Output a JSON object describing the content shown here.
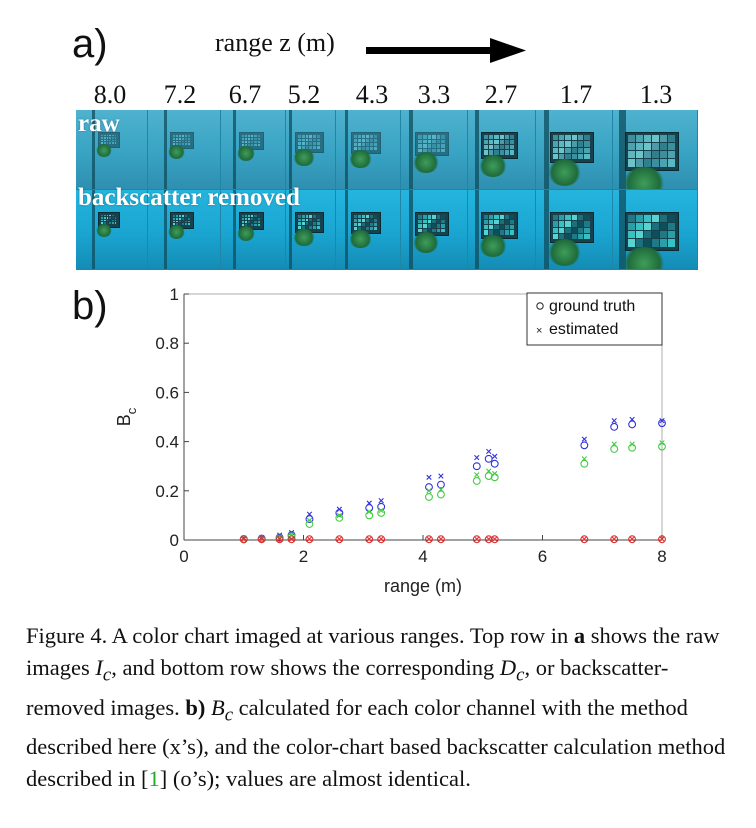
{
  "figure": {
    "panel_a_label": "a)",
    "panel_b_label": "b)",
    "range_title": "range z (m)",
    "ranges": [
      "8.0",
      "7.2",
      "6.7",
      "5.2",
      "4.3",
      "3.3",
      "2.7",
      "1.7",
      "1.3"
    ],
    "row_labels": {
      "top": "raw",
      "bottom": "backscatter removed"
    }
  },
  "chart_data": {
    "type": "scatter",
    "title": "",
    "xlabel": "range (m)",
    "ylabel": "B_c",
    "ylabel_main": "B",
    "ylabel_sub": "c",
    "xlim": [
      0,
      8
    ],
    "ylim": [
      0,
      1
    ],
    "xticks": [
      "0",
      "2",
      "4",
      "6",
      "8"
    ],
    "yticks": [
      "0",
      "0.2",
      "0.4",
      "0.6",
      "0.8",
      "1"
    ],
    "legend": {
      "position": "top-right",
      "entries": [
        {
          "marker": "o",
          "label": "ground truth"
        },
        {
          "marker": "x",
          "label": "estimated"
        }
      ]
    },
    "x": [
      1.0,
      1.3,
      1.6,
      1.8,
      2.1,
      2.6,
      3.1,
      3.3,
      4.1,
      4.3,
      4.9,
      5.1,
      5.2,
      6.7,
      7.2,
      7.5,
      8.0
    ],
    "series": [
      {
        "color": "#3333dd",
        "ground_truth": [
          0.004,
          0.006,
          0.01,
          0.02,
          0.085,
          0.11,
          0.13,
          0.135,
          0.215,
          0.225,
          0.3,
          0.33,
          0.31,
          0.385,
          0.46,
          0.47,
          0.475
        ],
        "estimated": [
          0.008,
          0.01,
          0.02,
          0.03,
          0.105,
          0.125,
          0.15,
          0.16,
          0.255,
          0.26,
          0.335,
          0.36,
          0.34,
          0.41,
          0.485,
          0.49,
          0.485
        ]
      },
      {
        "color": "#44cc44",
        "ground_truth": [
          0.002,
          0.004,
          0.006,
          0.015,
          0.065,
          0.09,
          0.1,
          0.11,
          0.175,
          0.185,
          0.24,
          0.26,
          0.255,
          0.31,
          0.37,
          0.375,
          0.38
        ],
        "estimated": [
          0.004,
          0.006,
          0.01,
          0.02,
          0.08,
          0.1,
          0.115,
          0.12,
          0.2,
          0.205,
          0.265,
          0.28,
          0.27,
          0.33,
          0.39,
          0.39,
          0.395
        ]
      },
      {
        "color": "#dd3333",
        "ground_truth": [
          0.003,
          0.003,
          0.003,
          0.003,
          0.003,
          0.003,
          0.003,
          0.003,
          0.003,
          0.003,
          0.003,
          0.003,
          0.003,
          0.003,
          0.003,
          0.003,
          0.003
        ],
        "estimated": [
          0.004,
          0.004,
          0.004,
          0.004,
          0.004,
          0.004,
          0.004,
          0.004,
          0.004,
          0.004,
          0.004,
          0.004,
          0.004,
          0.004,
          0.004,
          0.004,
          0.004
        ]
      }
    ]
  },
  "caption": {
    "part1": "Figure 4. A color chart imaged at various ranges. Top row in ",
    "bold_a": "a",
    "part2": " shows the raw images ",
    "math_I": "I",
    "sub_c1": "c",
    "part3": ", and bottom row shows the corresponding ",
    "math_D": "D",
    "sub_c2": "c",
    "part4": ", or backscatter-removed images. ",
    "bold_b": "b)",
    "part5": " ",
    "math_B": "B",
    "sub_c3": "c",
    "part6": " calculated for each color channel with the method described here (x’s), and the color-chart based backscatter calculation method described in [",
    "cite": "1",
    "part7": "] (o’s); values are almost identical."
  }
}
